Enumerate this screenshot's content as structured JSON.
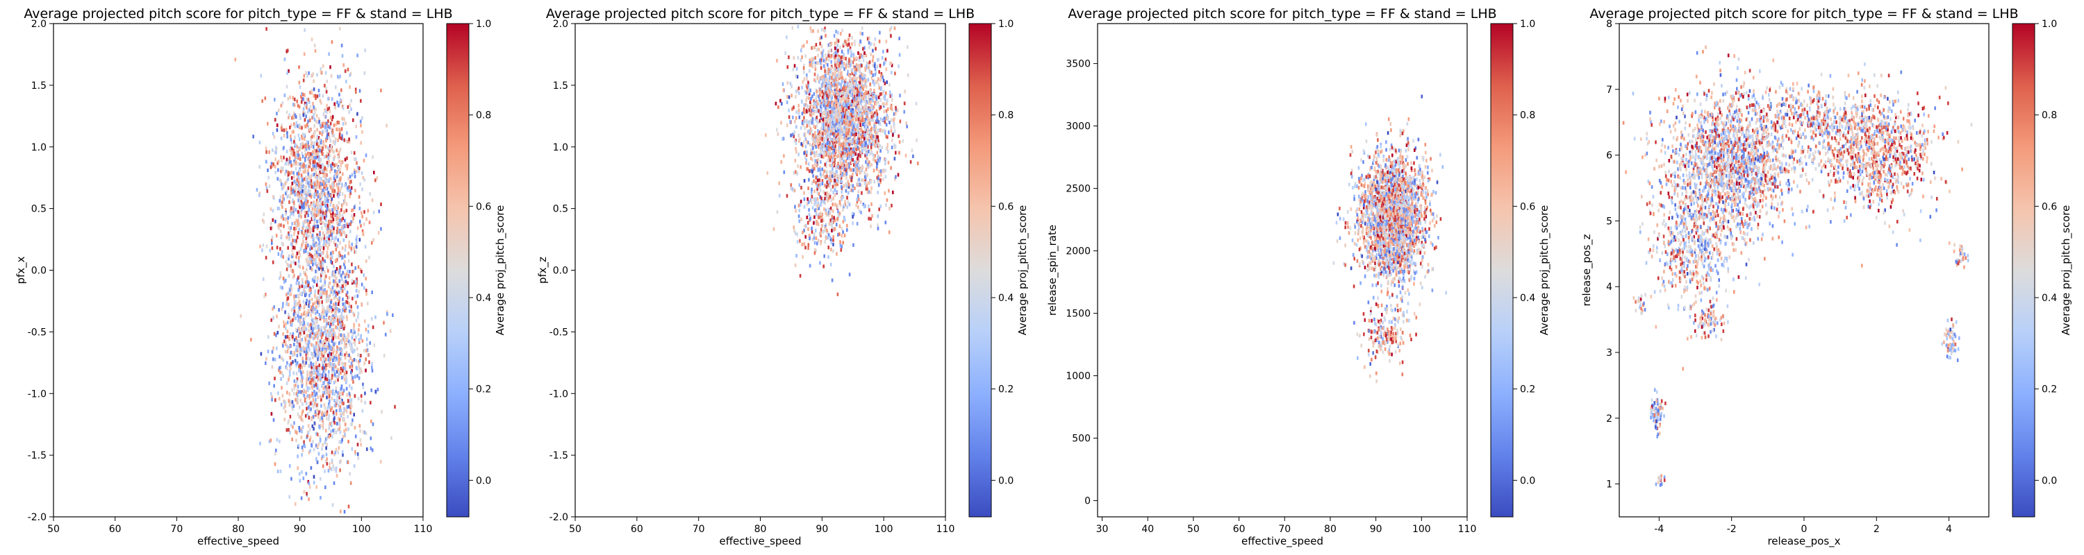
{
  "chart_data": [
    {
      "type": "heatmap",
      "title": "Average projected pitch score for pitch_type = FF & stand = LHB",
      "xlabel": "effective_speed",
      "ylabel": "pfx_x",
      "xlim": [
        50,
        110
      ],
      "ylim": [
        -2.0,
        2.0
      ],
      "xticks": [
        "50",
        "60",
        "70",
        "80",
        "90",
        "100",
        "110"
      ],
      "yticks": [
        "-2.0",
        "-1.5",
        "-1.0",
        "-0.5",
        "0.0",
        "0.5",
        "1.0",
        "1.5",
        "2.0"
      ],
      "colorbar": {
        "label": "Average proj_pitch_score",
        "ticks": [
          "0.0",
          "0.2",
          "0.4",
          "0.6",
          "0.8",
          "1.0"
        ],
        "range": [
          -0.08,
          1.0
        ],
        "colormap": "coolwarm"
      },
      "clusters": [
        {
          "cx": 92.5,
          "cy": 0.75,
          "sx": 3.6,
          "sy": 0.42,
          "n": 1500,
          "value_mean": 0.55
        },
        {
          "cx": 93.5,
          "cy": -0.6,
          "sx": 3.7,
          "sy": 0.5,
          "n": 1800,
          "value_mean": 0.45
        }
      ]
    },
    {
      "type": "heatmap",
      "title": "Average projected pitch score for pitch_type = FF & stand = LHB",
      "xlabel": "effective_speed",
      "ylabel": "pfx_z",
      "xlim": [
        50,
        110
      ],
      "ylim": [
        -2.0,
        2.0
      ],
      "xticks": [
        "50",
        "60",
        "70",
        "80",
        "90",
        "100",
        "110"
      ],
      "yticks": [
        "-2.0",
        "-1.5",
        "-1.0",
        "-0.5",
        "0.0",
        "0.5",
        "1.0",
        "1.5",
        "2.0"
      ],
      "colorbar": {
        "label": "Average proj_pitch_score",
        "ticks": [
          "0.0",
          "0.2",
          "0.4",
          "0.6",
          "0.8",
          "1.0"
        ],
        "range": [
          -0.08,
          1.0
        ],
        "colormap": "coolwarm"
      },
      "clusters": [
        {
          "cx": 93.5,
          "cy": 1.25,
          "sx": 3.8,
          "sy": 0.32,
          "n": 2600,
          "value_mean": 0.5
        },
        {
          "cx": 90.0,
          "cy": 0.45,
          "sx": 2.5,
          "sy": 0.2,
          "n": 250,
          "value_mean": 0.55
        }
      ]
    },
    {
      "type": "heatmap",
      "title": "Average projected pitch score for pitch_type = FF & stand = LHB",
      "xlabel": "effective_speed",
      "ylabel": "release_spin_rate",
      "xlim": [
        29,
        110
      ],
      "ylim": [
        -130,
        3820
      ],
      "xticks": [
        "30",
        "40",
        "50",
        "60",
        "70",
        "80",
        "90",
        "100",
        "110"
      ],
      "yticks": [
        "0",
        "500",
        "1000",
        "1500",
        "2000",
        "2500",
        "3000",
        "3500"
      ],
      "colorbar": {
        "label": "Average proj_pitch_score",
        "ticks": [
          "0.0",
          "0.2",
          "0.4",
          "0.6",
          "0.8",
          "1.0"
        ],
        "range": [
          -0.08,
          1.0
        ],
        "colormap": "coolwarm"
      },
      "clusters": [
        {
          "cx": 93.5,
          "cy": 2280,
          "sx": 3.7,
          "sy": 260,
          "n": 2400,
          "value_mean": 0.5
        },
        {
          "cx": 92.0,
          "cy": 1350,
          "sx": 2.8,
          "sy": 130,
          "n": 180,
          "value_mean": 0.6
        }
      ]
    },
    {
      "type": "heatmap",
      "title": "Average projected pitch score for pitch_type = FF & stand = LHB",
      "xlabel": "release_pos_x",
      "ylabel": "release_pos_z",
      "xlim": [
        -5.1,
        5.1
      ],
      "ylim": [
        0.5,
        8.0
      ],
      "xticks": [
        "-4",
        "-2",
        "0",
        "2",
        "4"
      ],
      "yticks": [
        "1",
        "2",
        "3",
        "4",
        "5",
        "6",
        "7",
        "8"
      ],
      "colorbar": {
        "label": "Average proj_pitch_score",
        "ticks": [
          "0.0",
          "0.2",
          "0.4",
          "0.6",
          "0.8",
          "1.0"
        ],
        "range": [
          -0.08,
          1.0
        ],
        "colormap": "coolwarm"
      },
      "clusters": [
        {
          "cx": -2.0,
          "cy": 5.9,
          "sx": 0.9,
          "sy": 0.55,
          "n": 1800,
          "value_mean": 0.5
        },
        {
          "cx": -3.2,
          "cy": 4.6,
          "sx": 0.55,
          "sy": 0.45,
          "n": 500,
          "value_mean": 0.45
        },
        {
          "cx": 1.9,
          "cy": 6.1,
          "sx": 0.8,
          "sy": 0.45,
          "n": 1000,
          "value_mean": 0.6
        },
        {
          "cx": 0.2,
          "cy": 6.6,
          "sx": 0.7,
          "sy": 0.25,
          "n": 300,
          "value_mean": 0.5
        },
        {
          "cx": -2.6,
          "cy": 3.5,
          "sx": 0.2,
          "sy": 0.12,
          "n": 80,
          "value_mean": 0.55
        },
        {
          "cx": 4.0,
          "cy": 3.2,
          "sx": 0.1,
          "sy": 0.15,
          "n": 60,
          "value_mean": 0.4
        },
        {
          "cx": -4.1,
          "cy": 2.1,
          "sx": 0.09,
          "sy": 0.13,
          "n": 70,
          "value_mean": 0.3
        },
        {
          "cx": -4.0,
          "cy": 1.1,
          "sx": 0.05,
          "sy": 0.07,
          "n": 12,
          "value_mean": 0.4
        },
        {
          "cx": 4.3,
          "cy": 4.5,
          "sx": 0.12,
          "sy": 0.1,
          "n": 30,
          "value_mean": 0.5
        },
        {
          "cx": -4.5,
          "cy": 3.75,
          "sx": 0.08,
          "sy": 0.08,
          "n": 20,
          "value_mean": 0.5
        }
      ]
    }
  ]
}
